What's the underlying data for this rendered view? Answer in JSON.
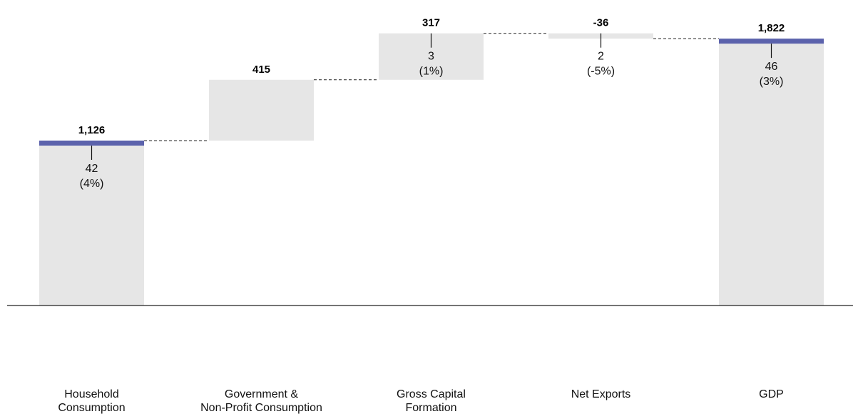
{
  "chart_data": {
    "type": "bar",
    "subtype": "waterfall",
    "categories": [
      [
        "Household",
        "Consumption"
      ],
      [
        "Government &",
        "Non-Profit Consumption"
      ],
      [
        "Gross Capital",
        "Formation"
      ],
      [
        "Net Exports"
      ],
      [
        "GDP"
      ]
    ],
    "values": [
      1126,
      415,
      317,
      -36,
      1822
    ],
    "value_labels": [
      "1,126",
      "415",
      "317",
      "-36",
      "1,822"
    ],
    "bar_kind": [
      "total",
      "increment",
      "increment",
      "increment",
      "total"
    ],
    "deltas": [
      {
        "value": "42",
        "pct": "(4%)"
      },
      null,
      {
        "value": "3",
        "pct": "(1%)"
      },
      {
        "value": "2",
        "pct": "(-5%)"
      },
      {
        "value": "46",
        "pct": "(3%)"
      }
    ],
    "ylim": [
      0,
      1900
    ],
    "grid": false,
    "legend": "none",
    "colors": {
      "bar_fill": "#e6e6e6",
      "total_marker": "#5b62ac",
      "connector": "#222222",
      "axis": "#222222"
    }
  }
}
